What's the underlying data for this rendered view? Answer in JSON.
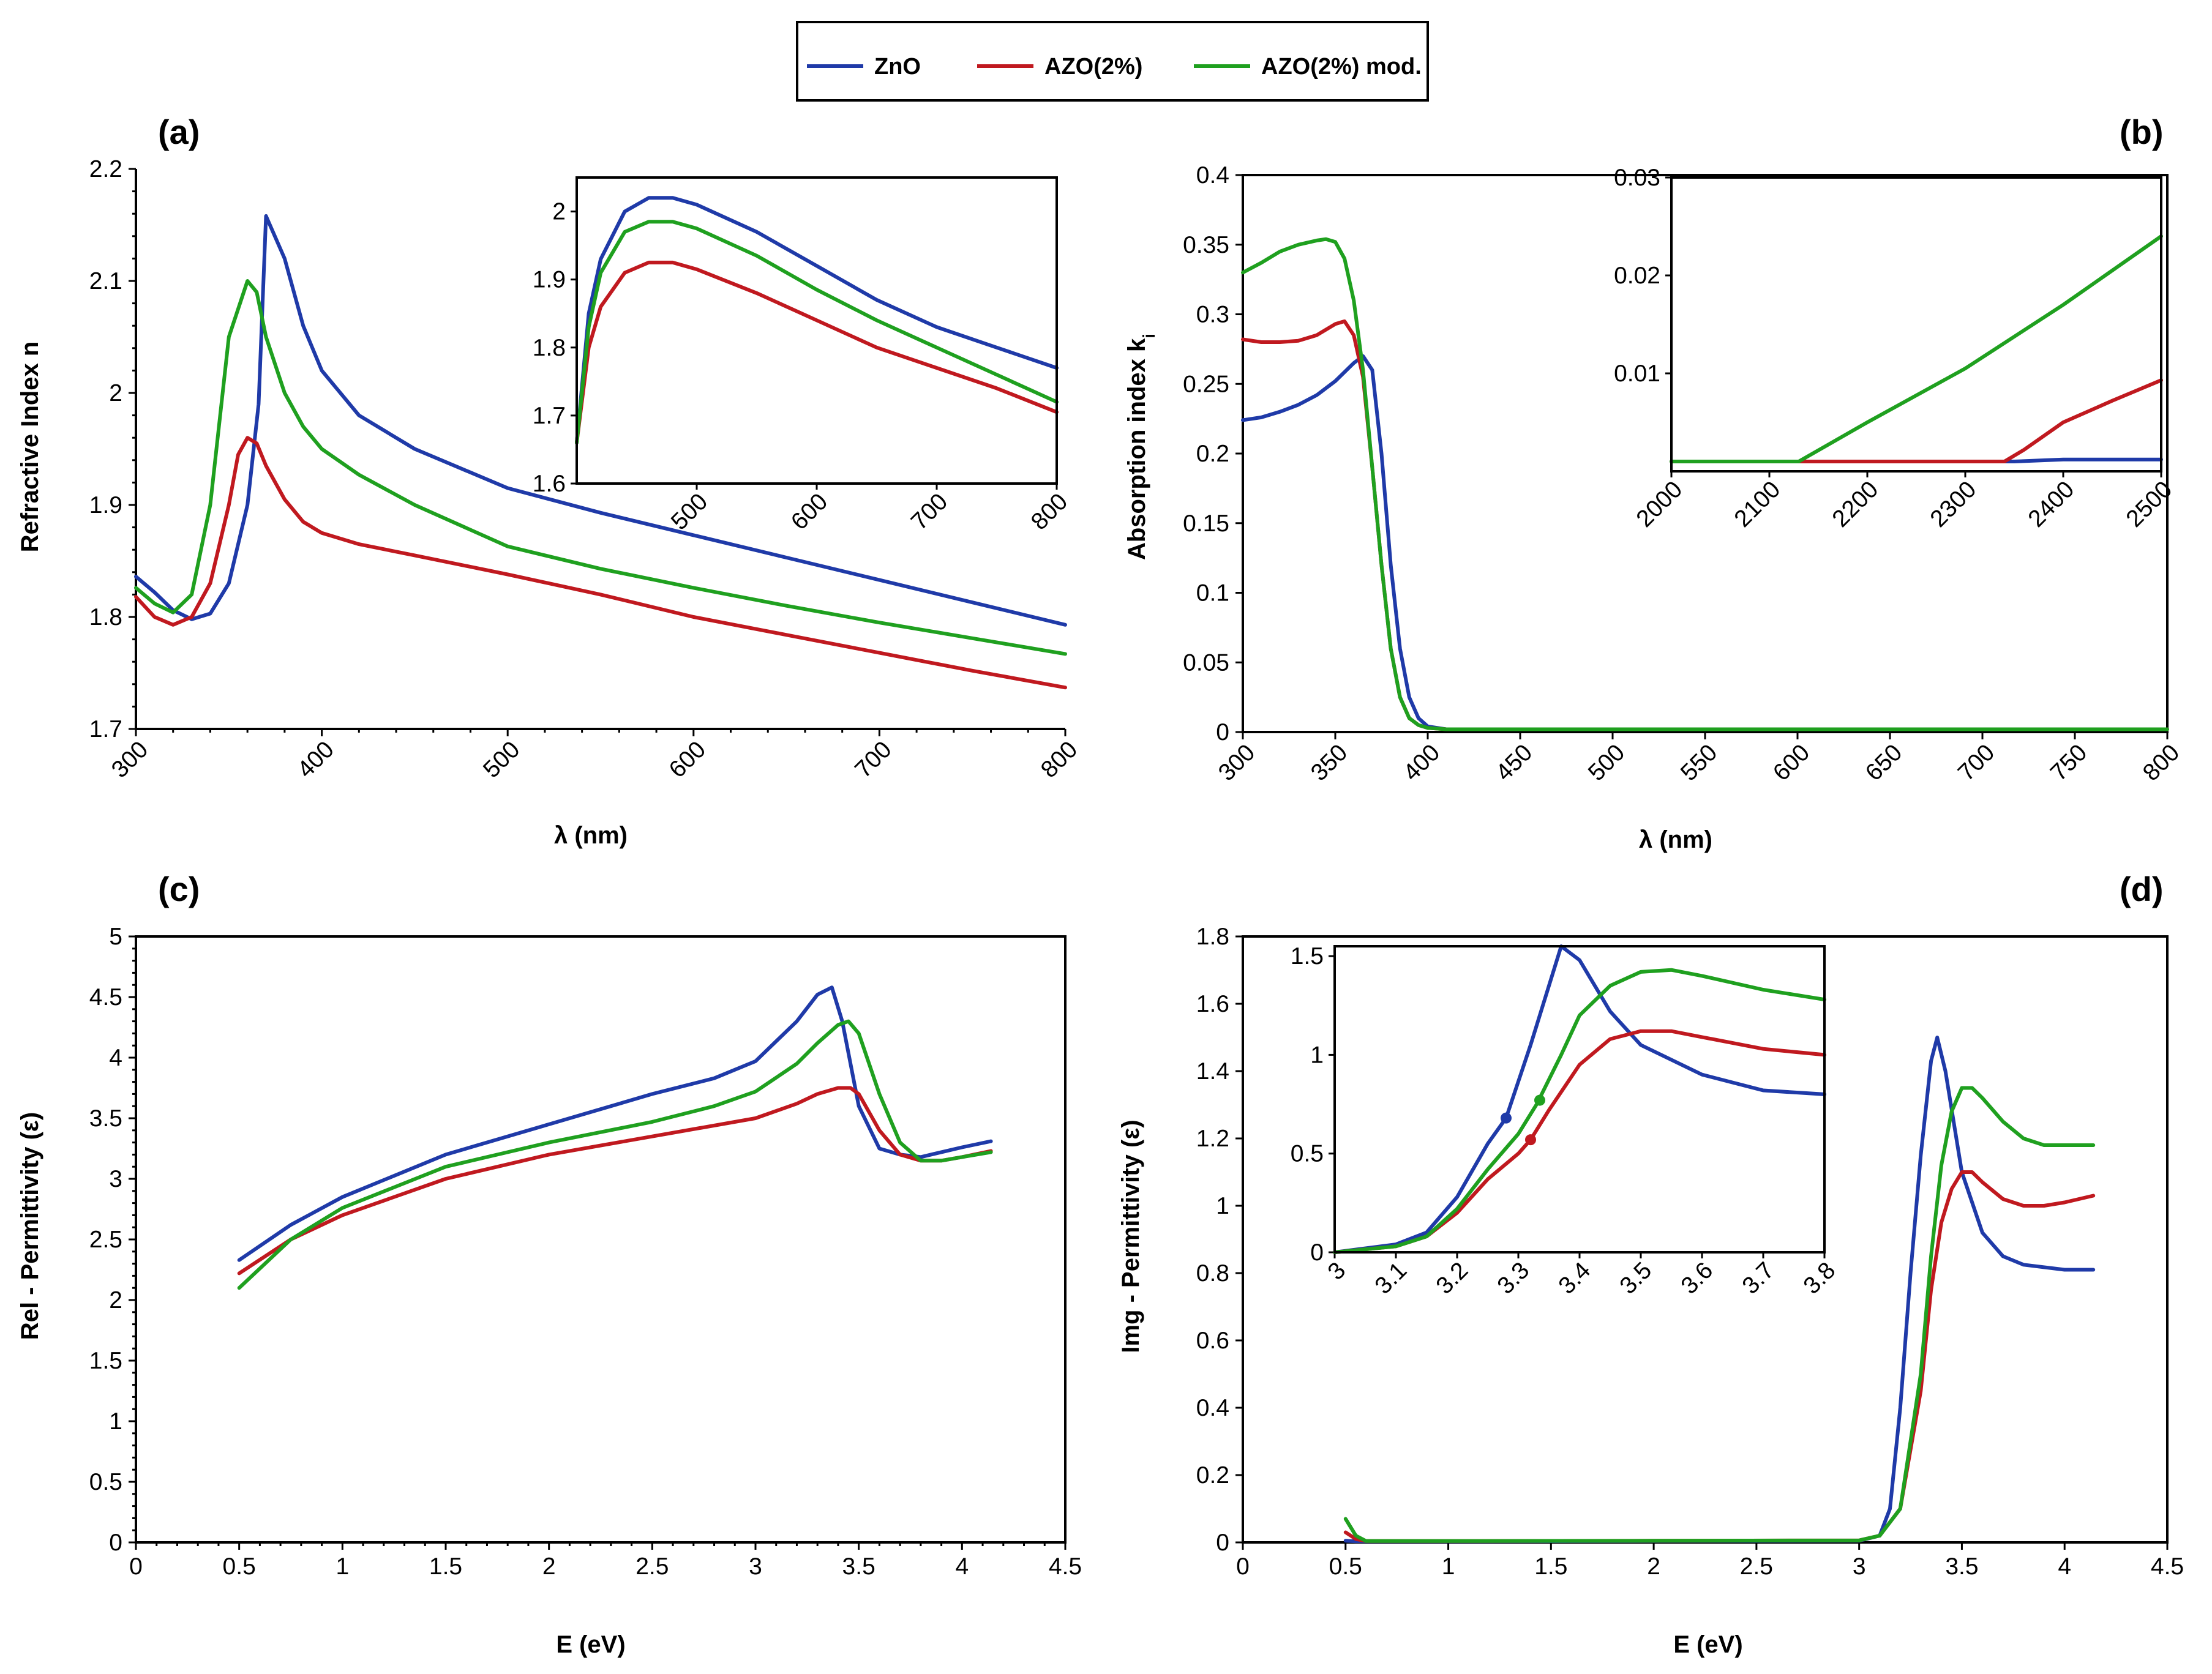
{
  "legend": {
    "items": [
      {
        "name": "ZnO",
        "color": "#1f3aa8"
      },
      {
        "name": "AZO(2%)",
        "color": "#c0191f"
      },
      {
        "name": "AZO(2%) mod.",
        "color": "#1fa01f"
      }
    ]
  },
  "chart_data": [
    {
      "panel_label": "(a)",
      "type": "line",
      "xlabel": "λ (nm)",
      "ylabel": "Refractive Index  n",
      "xlim": [
        300,
        800
      ],
      "ylim": [
        1.7,
        2.2
      ],
      "xticks": [
        "300",
        "400",
        "500",
        "600",
        "700",
        "800"
      ],
      "yticks": [
        "1.7",
        "1.8",
        "1.9",
        "2",
        "2.1",
        "2.2"
      ],
      "series": [
        {
          "name": "ZnO",
          "x": [
            300,
            310,
            320,
            330,
            340,
            350,
            360,
            366,
            370,
            380,
            390,
            400,
            420,
            450,
            500,
            550,
            600,
            650,
            700,
            750,
            800
          ],
          "y": [
            1.836,
            1.822,
            1.806,
            1.798,
            1.803,
            1.83,
            1.9,
            1.99,
            2.158,
            2.12,
            2.06,
            2.02,
            1.98,
            1.95,
            1.915,
            1.893,
            1.873,
            1.853,
            1.833,
            1.813,
            1.793
          ]
        },
        {
          "name": "AZO(2%)",
          "x": [
            300,
            310,
            320,
            330,
            340,
            350,
            355,
            360,
            365,
            370,
            380,
            390,
            400,
            420,
            450,
            500,
            550,
            600,
            650,
            700,
            750,
            800
          ],
          "y": [
            1.818,
            1.8,
            1.793,
            1.8,
            1.83,
            1.9,
            1.945,
            1.96,
            1.955,
            1.935,
            1.905,
            1.885,
            1.875,
            1.865,
            1.855,
            1.838,
            1.82,
            1.8,
            1.784,
            1.768,
            1.752,
            1.737
          ]
        },
        {
          "name": "AZO(2%) mod.",
          "x": [
            300,
            310,
            320,
            330,
            340,
            350,
            360,
            365,
            370,
            380,
            390,
            400,
            420,
            450,
            500,
            550,
            600,
            650,
            700,
            750,
            800
          ],
          "y": [
            1.826,
            1.812,
            1.804,
            1.82,
            1.9,
            2.05,
            2.1,
            2.09,
            2.05,
            2.0,
            1.97,
            1.95,
            1.927,
            1.9,
            1.863,
            1.843,
            1.826,
            1.81,
            1.795,
            1.781,
            1.767
          ]
        }
      ],
      "inset": {
        "xlim": [
          400,
          800
        ],
        "ylim": [
          1.6,
          2.05
        ],
        "xticks": [
          "500",
          "600",
          "700",
          "800"
        ],
        "yticks": [
          "1.6",
          "1.7",
          "1.8",
          "1.9",
          "2"
        ],
        "series": [
          {
            "name": "ZnO",
            "x": [
              400,
              410,
              420,
              440,
              460,
              480,
              500,
              550,
              600,
              650,
              700,
              750,
              800
            ],
            "y": [
              1.66,
              1.85,
              1.93,
              2.0,
              2.02,
              2.02,
              2.01,
              1.97,
              1.92,
              1.87,
              1.83,
              1.8,
              1.77
            ]
          },
          {
            "name": "AZO(2%)",
            "x": [
              400,
              410,
              420,
              440,
              460,
              480,
              500,
              550,
              600,
              650,
              700,
              750,
              800
            ],
            "y": [
              1.66,
              1.8,
              1.86,
              1.91,
              1.925,
              1.925,
              1.915,
              1.88,
              1.84,
              1.8,
              1.77,
              1.74,
              1.705
            ]
          },
          {
            "name": "AZO(2%) mod.",
            "x": [
              400,
              410,
              420,
              440,
              460,
              480,
              500,
              550,
              600,
              650,
              700,
              750,
              800
            ],
            "y": [
              1.66,
              1.83,
              1.91,
              1.97,
              1.985,
              1.985,
              1.975,
              1.935,
              1.885,
              1.84,
              1.8,
              1.76,
              1.72
            ]
          }
        ]
      }
    },
    {
      "panel_label": "(b)",
      "type": "line",
      "xlabel": "λ (nm)",
      "ylabel": "Absorption index  k",
      "ylabel_sub": "i",
      "xlim": [
        300,
        800
      ],
      "ylim": [
        0,
        0.4
      ],
      "xticks": [
        "300",
        "350",
        "400",
        "450",
        "500",
        "550",
        "600",
        "650",
        "700",
        "750",
        "800"
      ],
      "yticks": [
        "0",
        "0.05",
        "0.1",
        "0.15",
        "0.2",
        "0.25",
        "0.3",
        "0.35",
        "0.4"
      ],
      "series": [
        {
          "name": "ZnO",
          "x": [
            300,
            310,
            320,
            330,
            340,
            350,
            360,
            365,
            370,
            375,
            380,
            385,
            390,
            395,
            400,
            410,
            800
          ],
          "y": [
            0.224,
            0.226,
            0.23,
            0.235,
            0.242,
            0.252,
            0.265,
            0.27,
            0.26,
            0.2,
            0.12,
            0.06,
            0.025,
            0.01,
            0.004,
            0.002,
            0.002
          ]
        },
        {
          "name": "AZO(2%)",
          "x": [
            300,
            310,
            320,
            330,
            340,
            350,
            355,
            360,
            365,
            370,
            375,
            380,
            385,
            390,
            395,
            400,
            410,
            800
          ],
          "y": [
            0.282,
            0.28,
            0.28,
            0.281,
            0.285,
            0.293,
            0.295,
            0.285,
            0.255,
            0.19,
            0.12,
            0.06,
            0.025,
            0.01,
            0.005,
            0.003,
            0.002,
            0.002
          ]
        },
        {
          "name": "AZO(2%) mod.",
          "x": [
            300,
            310,
            320,
            330,
            340,
            345,
            350,
            355,
            360,
            365,
            370,
            375,
            380,
            385,
            390,
            395,
            400,
            410,
            800
          ],
          "y": [
            0.33,
            0.337,
            0.345,
            0.35,
            0.353,
            0.354,
            0.352,
            0.34,
            0.31,
            0.26,
            0.19,
            0.12,
            0.06,
            0.025,
            0.01,
            0.005,
            0.003,
            0.002,
            0.002
          ]
        }
      ],
      "inset": {
        "xlim": [
          2000,
          2500
        ],
        "ylim": [
          0,
          0.03
        ],
        "xticks": [
          "2000",
          "2100",
          "2200",
          "2300",
          "2400",
          "2500"
        ],
        "yticks": [
          "0.01",
          "0.02",
          "0.03"
        ],
        "series": [
          {
            "name": "ZnO",
            "x": [
              2000,
              2350,
              2400,
              2500
            ],
            "y": [
              0.001,
              0.001,
              0.0012,
              0.0012
            ]
          },
          {
            "name": "AZO(2%)",
            "x": [
              2000,
              2340,
              2360,
              2400,
              2450,
              2500
            ],
            "y": [
              0.001,
              0.001,
              0.0022,
              0.005,
              0.0072,
              0.0093
            ]
          },
          {
            "name": "AZO(2%) mod.",
            "x": [
              2000,
              2130,
              2200,
              2300,
              2400,
              2500
            ],
            "y": [
              0.001,
              0.001,
              0.005,
              0.0105,
              0.017,
              0.024
            ]
          }
        ]
      }
    },
    {
      "panel_label": "(c)",
      "type": "line",
      "xlabel": "E (eV)",
      "ylabel": "Rel - Permittivity  (ε)",
      "xlim": [
        0,
        4.5
      ],
      "ylim": [
        0,
        5
      ],
      "xticks": [
        "0",
        "0.5",
        "1",
        "1.5",
        "2",
        "2.5",
        "3",
        "3.5",
        "4",
        "4.5"
      ],
      "yticks": [
        "0",
        "0.5",
        "1",
        "1.5",
        "2",
        "2.5",
        "3",
        "3.5",
        "4",
        "4.5",
        "5"
      ],
      "series": [
        {
          "name": "ZnO",
          "x": [
            0.5,
            0.75,
            1,
            1.5,
            2,
            2.5,
            2.8,
            3.0,
            3.2,
            3.3,
            3.37,
            3.42,
            3.5,
            3.6,
            3.7,
            3.8,
            3.9,
            4.0,
            4.14
          ],
          "y": [
            2.33,
            2.62,
            2.85,
            3.2,
            3.45,
            3.7,
            3.83,
            3.97,
            4.3,
            4.52,
            4.58,
            4.3,
            3.6,
            3.25,
            3.2,
            3.18,
            3.22,
            3.26,
            3.31
          ]
        },
        {
          "name": "AZO(2%)",
          "x": [
            0.5,
            0.75,
            1,
            1.5,
            2,
            2.5,
            3.0,
            3.2,
            3.3,
            3.4,
            3.46,
            3.5,
            3.6,
            3.7,
            3.8,
            3.9,
            4.0,
            4.14
          ],
          "y": [
            2.22,
            2.5,
            2.7,
            3.0,
            3.2,
            3.35,
            3.5,
            3.62,
            3.7,
            3.75,
            3.75,
            3.7,
            3.4,
            3.2,
            3.15,
            3.15,
            3.18,
            3.23
          ]
        },
        {
          "name": "AZO(2%) mod.",
          "x": [
            0.5,
            0.75,
            1,
            1.5,
            2,
            2.5,
            2.8,
            3.0,
            3.2,
            3.3,
            3.4,
            3.45,
            3.5,
            3.6,
            3.7,
            3.8,
            3.9,
            4.0,
            4.14
          ],
          "y": [
            2.1,
            2.5,
            2.76,
            3.1,
            3.3,
            3.47,
            3.6,
            3.72,
            3.95,
            4.12,
            4.27,
            4.3,
            4.2,
            3.7,
            3.3,
            3.15,
            3.15,
            3.18,
            3.22
          ]
        }
      ]
    },
    {
      "panel_label": "(d)",
      "type": "line",
      "xlabel": "E (eV)",
      "ylabel": "Img - Permittivity   (ε)",
      "xlim": [
        0,
        4.5
      ],
      "ylim": [
        0,
        1.8
      ],
      "xticks": [
        "0",
        "0.5",
        "1",
        "1.5",
        "2",
        "2.5",
        "3",
        "3.5",
        "4",
        "4.5"
      ],
      "yticks": [
        "0",
        "0.2",
        "0.4",
        "0.6",
        "0.8",
        "1",
        "1.2",
        "1.4",
        "1.6",
        "1.8"
      ],
      "series": [
        {
          "name": "ZnO",
          "x": [
            0.5,
            0.55,
            0.6,
            1,
            2,
            3.0,
            3.1,
            3.15,
            3.2,
            3.25,
            3.3,
            3.35,
            3.38,
            3.42,
            3.5,
            3.6,
            3.7,
            3.8,
            4.0,
            4.14
          ],
          "y": [
            0.005,
            0.003,
            0.003,
            0.003,
            0.004,
            0.005,
            0.02,
            0.1,
            0.4,
            0.8,
            1.15,
            1.43,
            1.5,
            1.4,
            1.1,
            0.92,
            0.85,
            0.825,
            0.81,
            0.81
          ]
        },
        {
          "name": "AZO(2%)",
          "x": [
            0.5,
            0.55,
            0.6,
            1,
            2,
            3.0,
            3.1,
            3.2,
            3.3,
            3.35,
            3.4,
            3.45,
            3.5,
            3.55,
            3.6,
            3.7,
            3.8,
            3.9,
            4.0,
            4.14
          ],
          "y": [
            0.03,
            0.01,
            0.004,
            0.004,
            0.005,
            0.006,
            0.02,
            0.1,
            0.45,
            0.75,
            0.95,
            1.05,
            1.1,
            1.1,
            1.07,
            1.02,
            1.0,
            1.0,
            1.01,
            1.03
          ]
        },
        {
          "name": "AZO(2%) mod.",
          "x": [
            0.5,
            0.55,
            0.6,
            1,
            2,
            3.0,
            3.1,
            3.2,
            3.3,
            3.35,
            3.4,
            3.45,
            3.5,
            3.55,
            3.6,
            3.7,
            3.8,
            3.9,
            4.0,
            4.14
          ],
          "y": [
            0.07,
            0.02,
            0.004,
            0.004,
            0.005,
            0.006,
            0.02,
            0.1,
            0.5,
            0.85,
            1.12,
            1.28,
            1.35,
            1.35,
            1.32,
            1.25,
            1.2,
            1.18,
            1.18,
            1.18
          ]
        }
      ],
      "inset": {
        "xlim": [
          3,
          3.8
        ],
        "ylim": [
          0,
          1.55
        ],
        "xticks": [
          "3",
          "3.1",
          "3.2",
          "3.3",
          "3.4",
          "3.5",
          "3.6",
          "3.7",
          "3.8"
        ],
        "yticks": [
          "0",
          "0.5",
          "1",
          "1.5"
        ],
        "series": [
          {
            "name": "ZnO",
            "x": [
              3.0,
              3.1,
              3.15,
              3.2,
              3.25,
              3.28,
              3.32,
              3.37,
              3.4,
              3.45,
              3.5,
              3.6,
              3.7,
              3.8
            ],
            "y": [
              0.0,
              0.04,
              0.1,
              0.28,
              0.55,
              0.68,
              1.05,
              1.55,
              1.48,
              1.22,
              1.05,
              0.9,
              0.82,
              0.8
            ]
          },
          {
            "name": "AZO(2%)",
            "x": [
              3.0,
              3.1,
              3.15,
              3.2,
              3.25,
              3.3,
              3.32,
              3.35,
              3.4,
              3.45,
              3.5,
              3.55,
              3.6,
              3.7,
              3.8
            ],
            "y": [
              0.0,
              0.03,
              0.08,
              0.2,
              0.37,
              0.5,
              0.57,
              0.72,
              0.95,
              1.08,
              1.12,
              1.12,
              1.09,
              1.03,
              1.0
            ]
          },
          {
            "name": "AZO(2%) mod.",
            "x": [
              3.0,
              3.1,
              3.15,
              3.2,
              3.25,
              3.3,
              3.33,
              3.37,
              3.4,
              3.45,
              3.5,
              3.55,
              3.6,
              3.7,
              3.8
            ],
            "y": [
              0.0,
              0.03,
              0.08,
              0.22,
              0.42,
              0.6,
              0.75,
              1.0,
              1.2,
              1.35,
              1.42,
              1.43,
              1.4,
              1.33,
              1.28
            ]
          }
        ],
        "markers": [
          {
            "name": "ZnO",
            "x": 3.28,
            "y": 0.68
          },
          {
            "name": "AZO(2%)",
            "x": 3.32,
            "y": 0.57
          },
          {
            "name": "AZO(2%) mod.",
            "x": 3.335,
            "y": 0.77
          }
        ]
      }
    }
  ]
}
